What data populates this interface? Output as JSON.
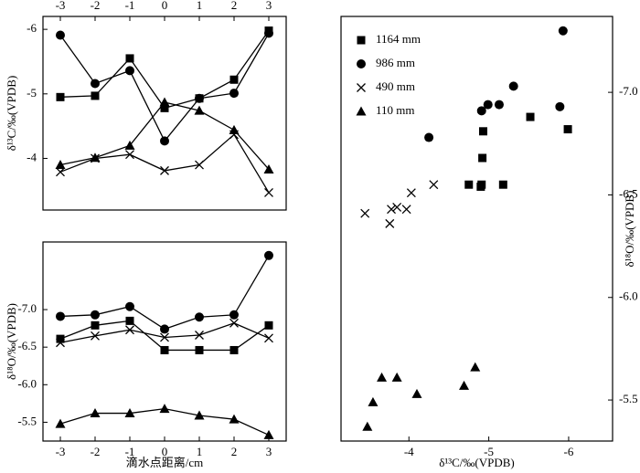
{
  "chart_data": [
    {
      "type": "line",
      "xaxis_position": "top",
      "x": [
        -3,
        -2,
        -1,
        0,
        1,
        2,
        3
      ],
      "xlim": [
        -3.5,
        3.5
      ],
      "xticks": [
        -3,
        -2,
        -1,
        0,
        1,
        2,
        3
      ],
      "ylim": [
        -3.2,
        -6.2
      ],
      "yticks": [
        -6,
        -5,
        -4
      ],
      "ylabel": "δ¹³C/‰(VPDB)",
      "color": "#000000",
      "series": [
        {
          "marker": "square",
          "values": [
            -4.95,
            -4.97,
            -5.55,
            -4.78,
            -4.93,
            -5.22,
            -5.98
          ]
        },
        {
          "marker": "circle",
          "values": [
            -5.91,
            -5.16,
            -5.36,
            -4.27,
            -4.93,
            -5.01,
            -5.94
          ]
        },
        {
          "marker": "x",
          "values": [
            -3.79,
            -4.0,
            -4.06,
            -3.81,
            -3.9,
            -4.37,
            -3.47
          ]
        },
        {
          "marker": "triangle",
          "values": [
            -3.9,
            -4.01,
            -4.2,
            -4.87,
            -4.74,
            -4.44,
            -3.83
          ]
        }
      ]
    },
    {
      "type": "line",
      "xaxis_position": "bottom",
      "xlabel": "滴水点距离/cm",
      "x": [
        -3,
        -2,
        -1,
        0,
        1,
        2,
        3
      ],
      "xlim": [
        -3.5,
        3.5
      ],
      "xticks": [
        -3,
        -2,
        -1,
        0,
        1,
        2,
        3
      ],
      "ylim": [
        -5.25,
        -7.9
      ],
      "yticks": [
        {
          "value": -7,
          "label": "-7.0"
        },
        -6.5,
        {
          "value": -6,
          "label": "-6.0"
        },
        -5.5
      ],
      "ylabel": "δ¹⁸O/‰(VPDB)",
      "color": "#000000",
      "series": [
        {
          "marker": "square",
          "values": [
            -6.61,
            -6.79,
            -6.85,
            -6.46,
            -6.46,
            -6.46,
            -6.79
          ]
        },
        {
          "marker": "circle",
          "values": [
            -6.91,
            -6.93,
            -7.04,
            -6.74,
            -6.9,
            -6.93,
            -7.72
          ]
        },
        {
          "marker": "x",
          "values": [
            -6.56,
            -6.65,
            -6.73,
            -6.63,
            -6.66,
            -6.82,
            -6.62
          ]
        },
        {
          "marker": "triangle",
          "values": [
            -5.48,
            -5.62,
            -5.62,
            -5.68,
            -5.59,
            -5.54,
            -5.33
          ]
        }
      ]
    },
    {
      "type": "scatter",
      "xaxis_position": "bottom",
      "yaxis_position": "right",
      "legend": "upper left",
      "xlabel": "δ¹³C/‰(VPDB)",
      "ylabel": "δ¹⁸O/‰(VPDB)",
      "color": "#000000",
      "xlim": [
        -3.15,
        -6.55
      ],
      "xticks": [
        -4,
        -5,
        -6
      ],
      "ylim": [
        -5.3,
        -7.37
      ],
      "yticks": [
        {
          "value": -7,
          "label": "-7.0"
        },
        -6.5,
        {
          "value": -6,
          "label": "-6.0"
        },
        -5.5
      ],
      "series": [
        {
          "name": "1164 mm",
          "marker": "square",
          "x": [
            -4.75,
            -4.91,
            -5.18,
            -4.9,
            -4.92,
            -4.93,
            -5.52,
            -5.99
          ],
          "values": [
            -6.55,
            -6.55,
            -6.55,
            -6.54,
            -6.68,
            -6.81,
            -6.88,
            -6.82
          ]
        },
        {
          "name": "986 mm",
          "marker": "circle",
          "x": [
            -4.25,
            -4.91,
            -4.99,
            -5.13,
            -5.31,
            -5.89,
            -5.93
          ],
          "values": [
            -6.78,
            -6.91,
            -6.94,
            -6.94,
            -7.03,
            -6.93,
            -7.3
          ]
        },
        {
          "name": "490 mm",
          "marker": "x",
          "x": [
            -3.45,
            -3.76,
            -3.78,
            -3.85,
            -3.97,
            -4.03,
            -4.31
          ],
          "values": [
            -6.41,
            -6.36,
            -6.43,
            -6.44,
            -6.43,
            -6.51,
            -6.55
          ]
        },
        {
          "name": "110 mm",
          "marker": "triangle",
          "x": [
            -3.48,
            -3.55,
            -3.66,
            -3.85,
            -4.1,
            -4.69,
            -4.83
          ],
          "values": [
            -5.37,
            -5.49,
            -5.61,
            -5.61,
            -5.53,
            -5.57,
            -5.66
          ]
        }
      ]
    }
  ]
}
